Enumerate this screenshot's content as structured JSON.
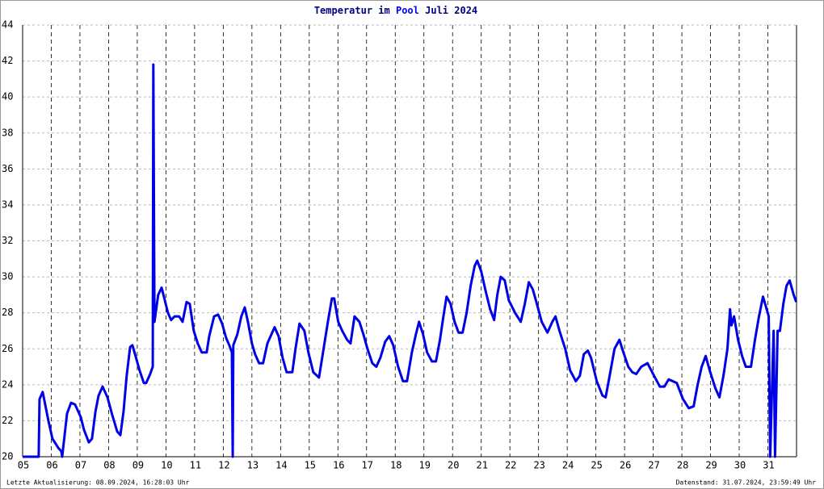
{
  "chart_data": {
    "type": "line",
    "title": "Temperatur im",
    "location": "Pool",
    "period": "Juli 2024",
    "footer_left": "Letzte Aktualisierung: 08.09.2024, 16:28:03 Uhr",
    "footer_right": "Datenstand: 31.07.2024, 23:59:49 Uhr",
    "x": [
      5.0,
      5.56,
      5.59,
      5.7,
      5.9,
      6.04,
      6.24,
      6.35,
      6.38,
      6.55,
      6.69,
      6.83,
      7.03,
      7.14,
      7.31,
      7.42,
      7.54,
      7.65,
      7.79,
      7.96,
      8.13,
      8.3,
      8.41,
      8.52,
      8.63,
      8.75,
      8.83,
      8.94,
      9.08,
      9.23,
      9.31,
      9.45,
      9.54,
      9.56,
      9.6,
      9.73,
      9.85,
      9.96,
      10.07,
      10.18,
      10.3,
      10.46,
      10.58,
      10.72,
      10.83,
      10.97,
      11.11,
      11.25,
      11.42,
      11.51,
      11.68,
      11.82,
      11.96,
      12.1,
      12.21,
      12.3,
      12.33,
      12.35,
      12.49,
      12.63,
      12.75,
      12.86,
      13.0,
      13.11,
      13.25,
      13.39,
      13.54,
      13.79,
      13.93,
      14.07,
      14.21,
      14.41,
      14.52,
      14.66,
      14.83,
      14.97,
      15.14,
      15.34,
      15.48,
      15.65,
      15.79,
      15.87,
      16.01,
      16.15,
      16.32,
      16.44,
      16.58,
      16.75,
      16.89,
      17.03,
      17.2,
      17.34,
      17.48,
      17.65,
      17.79,
      17.93,
      18.1,
      18.27,
      18.41,
      18.58,
      18.72,
      18.83,
      18.97,
      19.11,
      19.28,
      19.42,
      19.56,
      19.68,
      19.79,
      19.93,
      20.07,
      20.21,
      20.35,
      20.49,
      20.63,
      20.77,
      20.86,
      21.0,
      21.14,
      21.31,
      21.45,
      21.56,
      21.68,
      21.82,
      21.96,
      22.18,
      22.38,
      22.52,
      22.66,
      22.8,
      22.94,
      23.11,
      23.31,
      23.48,
      23.59,
      23.73,
      23.93,
      24.1,
      24.3,
      24.44,
      24.58,
      24.72,
      24.83,
      25.03,
      25.23,
      25.34,
      25.48,
      25.65,
      25.82,
      25.96,
      26.13,
      26.27,
      26.41,
      26.58,
      26.8,
      27.03,
      27.23,
      27.39,
      27.54,
      27.82,
      28.04,
      28.24,
      28.41,
      28.55,
      28.69,
      28.83,
      28.97,
      29.17,
      29.31,
      29.45,
      29.59,
      29.68,
      29.73,
      29.82,
      29.96,
      30.1,
      30.23,
      30.41,
      30.55,
      30.69,
      30.83,
      30.94,
      31.03,
      31.08,
      31.2,
      31.25,
      31.34,
      31.42,
      31.54,
      31.65,
      31.76,
      31.9,
      31.99
    ],
    "series": [
      {
        "color": "#0000e6",
        "values": [
          20,
          20,
          23.2,
          23.6,
          22,
          21,
          20.5,
          20.3,
          20,
          22.4,
          23,
          22.9,
          22.2,
          21.5,
          20.8,
          21,
          22.5,
          23.4,
          23.9,
          23.3,
          22.3,
          21.4,
          21.2,
          22.5,
          24.5,
          26.1,
          26.2,
          25.6,
          24.8,
          24.1,
          24.1,
          24.6,
          25,
          41.8,
          27.5,
          29,
          29.4,
          28.7,
          28,
          27.6,
          27.8,
          27.8,
          27.5,
          28.6,
          28.5,
          27,
          26.3,
          25.8,
          25.8,
          26.7,
          27.8,
          27.9,
          27.4,
          26.6,
          26.2,
          25.8,
          20,
          26.2,
          26.8,
          27.8,
          28.3,
          27.5,
          26.3,
          25.7,
          25.2,
          25.2,
          26.3,
          27.2,
          26.7,
          25.5,
          24.7,
          24.7,
          26,
          27.4,
          27,
          25.8,
          24.7,
          24.4,
          25.8,
          27.5,
          28.8,
          28.8,
          27.5,
          27,
          26.5,
          26.3,
          27.8,
          27.5,
          26.8,
          26,
          25.2,
          25,
          25.5,
          26.4,
          26.7,
          26.2,
          25,
          24.2,
          24.2,
          25.8,
          26.8,
          27.5,
          26.8,
          25.8,
          25.3,
          25.3,
          26.5,
          27.8,
          28.9,
          28.5,
          27.5,
          26.9,
          26.9,
          28,
          29.5,
          30.6,
          30.9,
          30.3,
          29.3,
          28.2,
          27.6,
          29,
          30,
          29.8,
          28.7,
          28,
          27.5,
          28.5,
          29.7,
          29.3,
          28.5,
          27.5,
          26.9,
          27.5,
          27.8,
          27,
          26,
          24.8,
          24.2,
          24.5,
          25.7,
          25.9,
          25.5,
          24.2,
          23.4,
          23.3,
          24.5,
          26,
          26.5,
          25.8,
          25,
          24.7,
          24.6,
          25,
          25.2,
          24.5,
          23.9,
          23.9,
          24.3,
          24.1,
          23.2,
          22.7,
          22.8,
          24,
          25,
          25.6,
          24.8,
          23.8,
          23.3,
          24.5,
          26,
          28.2,
          27.3,
          27.8,
          26.5,
          25.6,
          25,
          25,
          26.5,
          27.8,
          28.9,
          28.3,
          27.8,
          20,
          27,
          20,
          27,
          27,
          28.5,
          29.5,
          29.8,
          29,
          28.6
        ]
      }
    ],
    "xlim": [
      5,
      32
    ],
    "xticks": [
      {
        "value": 5,
        "label": "05"
      },
      {
        "value": 6,
        "label": "06"
      },
      {
        "value": 7,
        "label": "07"
      },
      {
        "value": 8,
        "label": "08"
      },
      {
        "value": 9,
        "label": "09"
      },
      10,
      11,
      12,
      13,
      14,
      15,
      16,
      17,
      18,
      19,
      20,
      21,
      22,
      23,
      24,
      25,
      26,
      27,
      28,
      29,
      30,
      31
    ],
    "ylim": [
      20,
      44
    ],
    "yticks": [
      20,
      22,
      24,
      26,
      28,
      30,
      32,
      34,
      36,
      38,
      40,
      42,
      44
    ],
    "grid": true
  }
}
